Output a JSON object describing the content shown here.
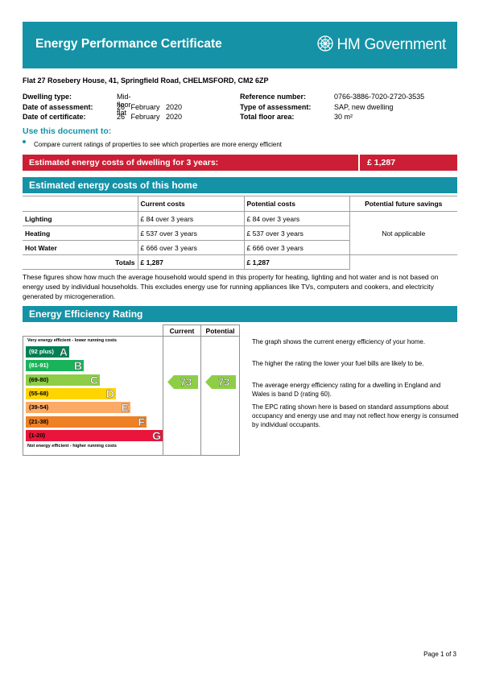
{
  "header": {
    "title": "Energy Performance Certificate",
    "logo_text": "HM Government",
    "logo_icon": "crest-icon"
  },
  "property": {
    "address": "Flat 27 Rosebery House, 41, Springfield Road, CHELMSFORD, CM2 6ZP",
    "dwelling_type_label": "Dwelling type:",
    "dwelling_type": "Mid-floor flat",
    "assessment_date_label": "Date of assessment:",
    "assessment_date": "26   February   2020",
    "certificate_date_label": "Date of certificate:",
    "certificate_date": "26   February   2020",
    "reference_label": "Reference number:",
    "reference": "0766-3886-7020-2720-3535",
    "assessment_type_label": "Type of assessment:",
    "assessment_type": "SAP, new dwelling",
    "floor_area_label": "Total floor area:",
    "floor_area": "30 m²"
  },
  "use_document": {
    "title": "Use this document to:",
    "bullet": "Compare current ratings of properties to see which properties are more energy efficient"
  },
  "estimated_3yr": {
    "label": "Estimated energy costs of dwelling for 3 years:",
    "value": "£ 1,287"
  },
  "costs_section": {
    "title": "Estimated energy costs of this home",
    "headers": [
      "",
      "Current costs",
      "Potential costs",
      "Potential future savings"
    ],
    "rows": [
      {
        "label": "Lighting",
        "current": "£ 84 over 3 years",
        "potential": "£ 84 over 3 years"
      },
      {
        "label": "Heating",
        "current": "£ 537 over 3 years",
        "potential": "£ 537 over 3 years"
      },
      {
        "label": "Hot Water",
        "current": "£ 666 over 3 years",
        "potential": "£ 666 over 3 years"
      }
    ],
    "savings": "Not applicable",
    "totals_label": "Totals",
    "total_current": "£ 1,287",
    "total_potential": "£ 1,287",
    "note": "These figures show how much the average household would spend in this property for heating, lighting and hot water and is not based on energy used by individual households. This excludes energy use for running appliances like TVs, computers and cookers, and electricity generated by microgeneration."
  },
  "efficiency": {
    "title": "Energy Efficiency Rating",
    "col_current": "Current",
    "col_potential": "Potential",
    "top_label": "Very energy efficient - lower running costs",
    "bottom_label": "Not energy efficient - higher running costs",
    "bands": [
      {
        "range": "(92 plus)",
        "letter": "A",
        "color": "#008054"
      },
      {
        "range": "(81-91)",
        "letter": "B",
        "color": "#19b459"
      },
      {
        "range": "(69-80)",
        "letter": "C",
        "color": "#8dce46"
      },
      {
        "range": "(55-68)",
        "letter": "D",
        "color": "#ffd500"
      },
      {
        "range": "(39-54)",
        "letter": "E",
        "color": "#fcaa65"
      },
      {
        "range": "(21-38)",
        "letter": "F",
        "color": "#ef8023"
      },
      {
        "range": "(1-20)",
        "letter": "G",
        "color": "#e9153b"
      }
    ],
    "current_rating": "73",
    "potential_rating": "73",
    "rating_color": "#8dce46",
    "paragraphs": [
      "The graph shows the current energy efficiency of your home.",
      "The higher the rating the lower your fuel bills are likely to be.",
      "The average energy efficiency rating for a dwelling in England and Wales is band D (rating 60).",
      "The EPC rating shown here is based on standard assumptions about occupancy and energy use and may not reflect how energy is consumed by individual occupants."
    ]
  },
  "footer": {
    "page": "Page 1 of 3"
  }
}
